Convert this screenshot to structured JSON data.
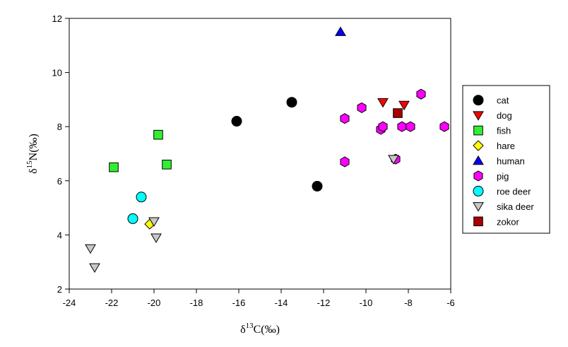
{
  "chart_data": {
    "type": "scatter",
    "xlabel": {
      "prefix": "δ",
      "sup": "13",
      "suffix": "C(‰)"
    },
    "ylabel": {
      "prefix": "δ",
      "sup": "15",
      "suffix": "N(‰)"
    },
    "xlim": [
      -24,
      -6
    ],
    "ylim": [
      2,
      12
    ],
    "xticks": [
      -24,
      -22,
      -20,
      -18,
      -16,
      -14,
      -12,
      -10,
      -8,
      -6
    ],
    "yticks": [
      2,
      4,
      6,
      8,
      10,
      12
    ],
    "grid": false,
    "legend_position": "right",
    "series": [
      {
        "name": "cat",
        "marker": "circle",
        "color": "#000000",
        "points": [
          [
            -16.1,
            8.2
          ],
          [
            -13.5,
            8.9
          ],
          [
            -12.3,
            5.8
          ]
        ]
      },
      {
        "name": "dog",
        "marker": "triangle-down",
        "color": "#ff0000",
        "points": [
          [
            -9.2,
            8.9
          ],
          [
            -8.2,
            8.8
          ]
        ]
      },
      {
        "name": "fish",
        "marker": "square",
        "color": "#33ee33",
        "points": [
          [
            -21.9,
            6.5
          ],
          [
            -19.8,
            7.7
          ],
          [
            -19.4,
            6.6
          ]
        ]
      },
      {
        "name": "hare",
        "marker": "diamond",
        "color": "#ffff00",
        "points": [
          [
            -20.2,
            4.4
          ]
        ]
      },
      {
        "name": "human",
        "marker": "triangle-up",
        "color": "#0000ff",
        "points": [
          [
            -11.2,
            11.5
          ]
        ]
      },
      {
        "name": "pig",
        "marker": "hexagon",
        "color": "#ff00ff",
        "points": [
          [
            -11.0,
            8.3
          ],
          [
            -11.0,
            6.7
          ],
          [
            -10.2,
            8.7
          ],
          [
            -9.3,
            7.9
          ],
          [
            -9.2,
            8.0
          ],
          [
            -8.6,
            6.8
          ],
          [
            -8.3,
            8.0
          ],
          [
            -7.9,
            8.0
          ],
          [
            -7.4,
            9.2
          ],
          [
            -6.3,
            8.0
          ]
        ]
      },
      {
        "name": "roe deer",
        "marker": "circle",
        "color": "#00ffff",
        "points": [
          [
            -21.0,
            4.6
          ],
          [
            -20.6,
            5.4
          ]
        ]
      },
      {
        "name": "sika deer",
        "marker": "triangle-down",
        "color": "#c8c8c8",
        "points": [
          [
            -23.0,
            3.5
          ],
          [
            -22.8,
            2.8
          ],
          [
            -20.0,
            4.5
          ],
          [
            -19.9,
            3.9
          ],
          [
            -8.7,
            6.8
          ]
        ]
      },
      {
        "name": "zokor",
        "marker": "square",
        "color": "#aa0000",
        "points": [
          [
            -8.5,
            8.5
          ]
        ]
      }
    ]
  }
}
